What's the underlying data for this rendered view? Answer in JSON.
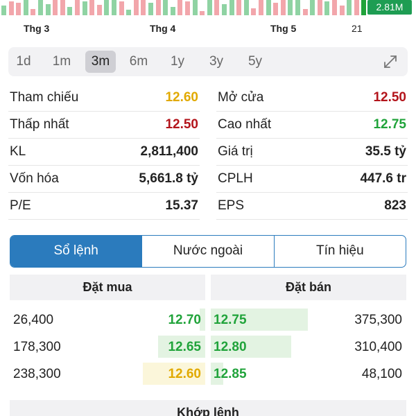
{
  "volume_badge": "2.81M",
  "colors": {
    "up": "#20a33a",
    "down": "#b3141b",
    "ref": "#e1a900",
    "accent": "#2b7bbd"
  },
  "timeline": {
    "months": [
      "Thg 3",
      "Thg 4",
      "Thg 5"
    ],
    "day_label": "21"
  },
  "timeframes": {
    "items": [
      "1d",
      "1m",
      "3m",
      "6m",
      "1y",
      "3y",
      "5y"
    ],
    "active": "3m",
    "expand_icon": "expand-icon"
  },
  "stats": {
    "left": [
      {
        "label": "Tham chiếu",
        "value": "12.60"
      },
      {
        "label": "Thấp nhất",
        "value": "12.50"
      },
      {
        "label": "KL",
        "value": "2,811,400"
      },
      {
        "label": "Vốn hóa",
        "value": "5,661.8 tỷ"
      },
      {
        "label": "P/E",
        "value": "15.37"
      }
    ],
    "right": [
      {
        "label": "Mở cửa",
        "value": "12.50"
      },
      {
        "label": "Cao nhất",
        "value": "12.75"
      },
      {
        "label": "Giá trị",
        "value": "35.5 tỷ"
      },
      {
        "label": "CPLH",
        "value": "447.6 tr"
      },
      {
        "label": "EPS",
        "value": "823"
      }
    ]
  },
  "tabs": [
    "Sổ lệnh",
    "Nước ngoài",
    "Tín hiệu"
  ],
  "order_book": {
    "buy_header": "Đặt mua",
    "sell_header": "Đặt bán",
    "bids": [
      {
        "qty": "26,400",
        "price": "12.70"
      },
      {
        "qty": "178,300",
        "price": "12.65"
      },
      {
        "qty": "238,300",
        "price": "12.60"
      }
    ],
    "asks": [
      {
        "price": "12.75",
        "qty": "375,300"
      },
      {
        "price": "12.80",
        "qty": "310,400"
      },
      {
        "price": "12.85",
        "qty": "48,100"
      }
    ]
  },
  "match_header": "Khớp lệnh"
}
